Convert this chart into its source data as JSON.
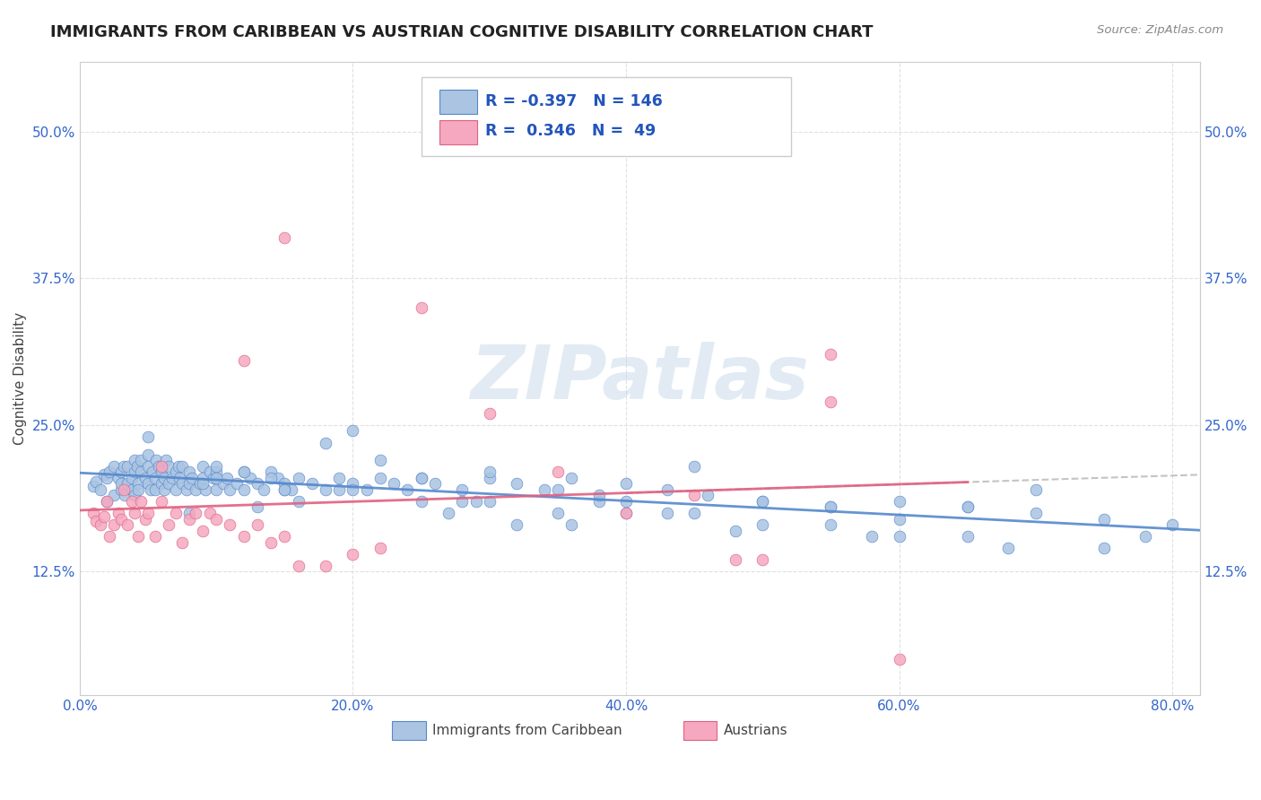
{
  "title": "IMMIGRANTS FROM CARIBBEAN VS AUSTRIAN COGNITIVE DISABILITY CORRELATION CHART",
  "source": "Source: ZipAtlas.com",
  "xlabel_ticks": [
    "0.0%",
    "20.0%",
    "40.0%",
    "60.0%",
    "80.0%"
  ],
  "xlabel_vals": [
    0.0,
    0.2,
    0.4,
    0.6,
    0.8
  ],
  "ylabel": "Cognitive Disability",
  "ylabel_ticks": [
    "12.5%",
    "25.0%",
    "37.5%",
    "50.0%"
  ],
  "ylabel_vals": [
    0.125,
    0.25,
    0.375,
    0.5
  ],
  "xlim": [
    0.0,
    0.82
  ],
  "ylim": [
    0.02,
    0.56
  ],
  "blue_color": "#aac4e2",
  "blue_line_color": "#5588cc",
  "pink_color": "#f5a8c0",
  "pink_line_color": "#e06080",
  "legend_blue_R": "-0.397",
  "legend_blue_N": "146",
  "legend_pink_R": "0.346",
  "legend_pink_N": "49",
  "legend_label_blue": "Immigrants from Caribbean",
  "legend_label_pink": "Austrians",
  "background_color": "#ffffff",
  "grid_color": "#dddddd",
  "title_fontsize": 13,
  "axis_label_fontsize": 11,
  "tick_fontsize": 11,
  "watermark_color": "#c0d4e8",
  "watermark_alpha": 0.45,
  "blue_scatter_x": [
    0.01,
    0.012,
    0.015,
    0.018,
    0.02,
    0.02,
    0.022,
    0.025,
    0.025,
    0.028,
    0.03,
    0.03,
    0.03,
    0.032,
    0.033,
    0.035,
    0.035,
    0.038,
    0.038,
    0.04,
    0.04,
    0.04,
    0.042,
    0.043,
    0.043,
    0.045,
    0.045,
    0.048,
    0.05,
    0.05,
    0.05,
    0.052,
    0.053,
    0.055,
    0.055,
    0.056,
    0.058,
    0.06,
    0.06,
    0.062,
    0.062,
    0.063,
    0.065,
    0.065,
    0.068,
    0.07,
    0.07,
    0.072,
    0.073,
    0.075,
    0.075,
    0.078,
    0.08,
    0.08,
    0.082,
    0.085,
    0.088,
    0.09,
    0.09,
    0.092,
    0.095,
    0.098,
    0.1,
    0.1,
    0.105,
    0.108,
    0.11,
    0.115,
    0.12,
    0.12,
    0.125,
    0.13,
    0.135,
    0.14,
    0.145,
    0.15,
    0.155,
    0.16,
    0.17,
    0.18,
    0.19,
    0.2,
    0.21,
    0.22,
    0.23,
    0.24,
    0.25,
    0.26,
    0.28,
    0.3,
    0.32,
    0.34,
    0.36,
    0.38,
    0.4,
    0.43,
    0.46,
    0.5,
    0.55,
    0.6,
    0.65,
    0.7,
    0.75,
    0.8,
    0.05,
    0.08,
    0.1,
    0.12,
    0.15,
    0.18,
    0.2,
    0.22,
    0.25,
    0.28,
    0.3,
    0.32,
    0.35,
    0.38,
    0.4,
    0.43,
    0.45,
    0.5,
    0.55,
    0.6,
    0.65,
    0.7,
    0.09,
    0.14,
    0.19,
    0.29,
    0.13,
    0.16,
    0.27,
    0.36,
    0.48,
    0.58,
    0.68,
    0.78,
    0.15,
    0.25,
    0.35,
    0.45,
    0.55,
    0.65,
    0.75,
    0.1,
    0.2,
    0.3,
    0.4,
    0.5,
    0.6
  ],
  "blue_scatter_y": [
    0.198,
    0.202,
    0.195,
    0.208,
    0.185,
    0.205,
    0.21,
    0.19,
    0.215,
    0.205,
    0.195,
    0.21,
    0.2,
    0.215,
    0.19,
    0.2,
    0.215,
    0.205,
    0.195,
    0.22,
    0.19,
    0.21,
    0.215,
    0.2,
    0.195,
    0.22,
    0.21,
    0.205,
    0.215,
    0.2,
    0.225,
    0.195,
    0.21,
    0.205,
    0.195,
    0.22,
    0.215,
    0.21,
    0.2,
    0.205,
    0.195,
    0.22,
    0.215,
    0.2,
    0.205,
    0.21,
    0.195,
    0.215,
    0.205,
    0.2,
    0.215,
    0.195,
    0.21,
    0.2,
    0.205,
    0.195,
    0.2,
    0.215,
    0.205,
    0.195,
    0.21,
    0.205,
    0.195,
    0.21,
    0.2,
    0.205,
    0.195,
    0.2,
    0.21,
    0.195,
    0.205,
    0.2,
    0.195,
    0.21,
    0.205,
    0.2,
    0.195,
    0.205,
    0.2,
    0.195,
    0.205,
    0.2,
    0.195,
    0.205,
    0.2,
    0.195,
    0.205,
    0.2,
    0.195,
    0.205,
    0.2,
    0.195,
    0.205,
    0.185,
    0.2,
    0.195,
    0.19,
    0.185,
    0.18,
    0.185,
    0.18,
    0.175,
    0.17,
    0.165,
    0.24,
    0.175,
    0.215,
    0.21,
    0.195,
    0.235,
    0.245,
    0.22,
    0.205,
    0.185,
    0.21,
    0.165,
    0.195,
    0.19,
    0.185,
    0.175,
    0.175,
    0.185,
    0.18,
    0.17,
    0.18,
    0.195,
    0.2,
    0.205,
    0.195,
    0.185,
    0.18,
    0.185,
    0.175,
    0.165,
    0.16,
    0.155,
    0.145,
    0.155,
    0.195,
    0.185,
    0.175,
    0.215,
    0.165,
    0.155,
    0.145,
    0.205,
    0.195,
    0.185,
    0.175,
    0.165,
    0.155
  ],
  "pink_scatter_x": [
    0.01,
    0.012,
    0.015,
    0.018,
    0.02,
    0.022,
    0.025,
    0.028,
    0.03,
    0.032,
    0.035,
    0.038,
    0.04,
    0.043,
    0.045,
    0.048,
    0.05,
    0.055,
    0.06,
    0.065,
    0.07,
    0.075,
    0.08,
    0.085,
    0.09,
    0.095,
    0.1,
    0.11,
    0.12,
    0.13,
    0.14,
    0.15,
    0.16,
    0.18,
    0.2,
    0.22,
    0.06,
    0.12,
    0.15,
    0.25,
    0.3,
    0.35,
    0.4,
    0.45,
    0.5,
    0.55,
    0.6,
    0.48,
    0.55
  ],
  "pink_scatter_y": [
    0.175,
    0.168,
    0.165,
    0.172,
    0.185,
    0.155,
    0.165,
    0.175,
    0.17,
    0.195,
    0.165,
    0.185,
    0.175,
    0.155,
    0.185,
    0.17,
    0.175,
    0.155,
    0.185,
    0.165,
    0.175,
    0.15,
    0.17,
    0.175,
    0.16,
    0.175,
    0.17,
    0.165,
    0.155,
    0.165,
    0.15,
    0.155,
    0.13,
    0.13,
    0.14,
    0.145,
    0.215,
    0.305,
    0.41,
    0.35,
    0.26,
    0.21,
    0.175,
    0.19,
    0.135,
    0.27,
    0.05,
    0.135,
    0.31
  ]
}
